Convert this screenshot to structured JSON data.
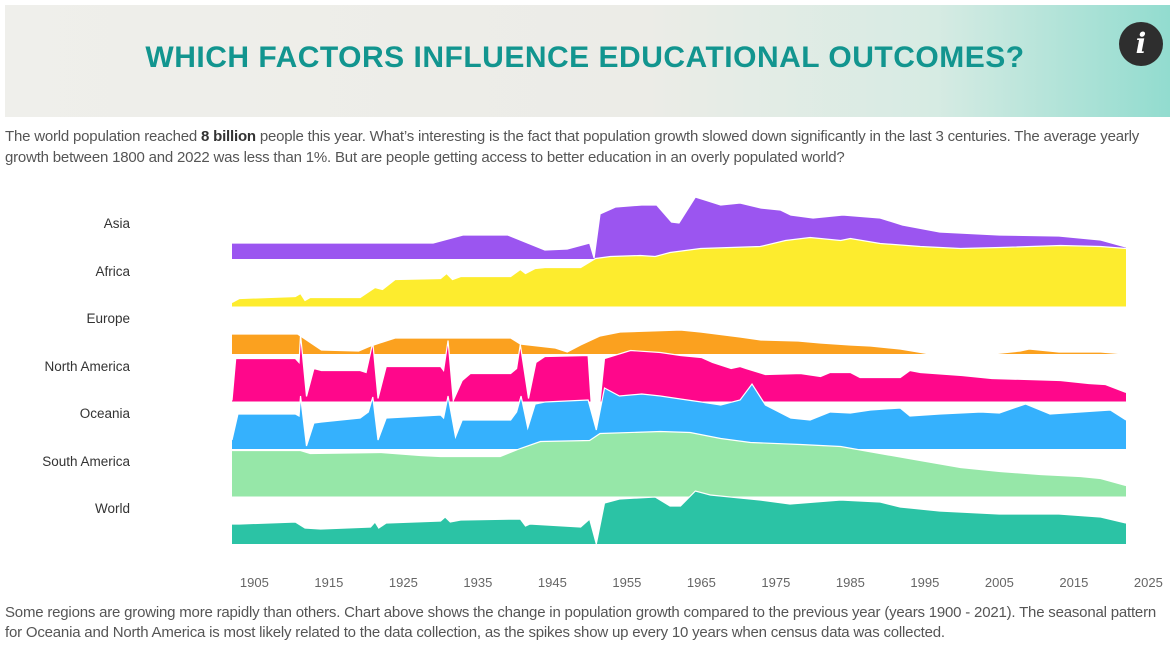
{
  "header": {
    "title": "WHICH FACTORS INFLUENCE EDUCATIONAL OUTCOMES?",
    "info_icon": "info-icon",
    "info_glyph": "i"
  },
  "intro": {
    "before": "The world population reached ",
    "bold": "8 billion",
    "after": " people this year. What’s interesting is the fact that population growth slowed down significantly in the last 3 centuries. The average yearly growth between 1800 and 2022 was less than 1%. But are people getting access to better education in an overly populated world?"
  },
  "outro": "Some regions are growing more rapidly than others. Chart above shows the change in population growth compared to the previous year (years 1900 - 2021). The seasonal pattern for Oceania and North America is most likely related to the data collection, as the spikes show up every 10 years when census data was collected.",
  "chart_data": {
    "type": "area",
    "subtype": "ridgeline",
    "title": "",
    "xlabel": "",
    "ylabel": "",
    "xlim": [
      1902,
      2022
    ],
    "x_ticks": [
      "1905",
      "1915",
      "1925",
      "1935",
      "1945",
      "1955",
      "1965",
      "1975",
      "1985",
      "1995",
      "2005",
      "2015",
      "2025"
    ],
    "value_note": "relative change in population growth (unitless index, estimated)",
    "series": [
      {
        "name": "Asia",
        "color": "#9b55f0",
        "points": [
          [
            1902,
            0.32
          ],
          [
            1929,
            0.32
          ],
          [
            1933,
            0.48
          ],
          [
            1939,
            0.48
          ],
          [
            1944,
            0.18
          ],
          [
            1947,
            0.2
          ],
          [
            1950,
            0.32
          ],
          [
            1950.6,
            0.02
          ],
          [
            1951.4,
            0.9
          ],
          [
            1953.5,
            1.04
          ],
          [
            1957,
            1.08
          ],
          [
            1959,
            1.08
          ],
          [
            1961,
            0.74
          ],
          [
            1962,
            0.72
          ],
          [
            1964.2,
            1.24
          ],
          [
            1965.5,
            1.18
          ],
          [
            1967.6,
            1.08
          ],
          [
            1970.2,
            1.12
          ],
          [
            1973,
            1.02
          ],
          [
            1975.6,
            0.98
          ],
          [
            1977,
            0.88
          ],
          [
            1980,
            0.82
          ],
          [
            1984,
            0.88
          ],
          [
            1989,
            0.82
          ],
          [
            1992,
            0.68
          ],
          [
            1997,
            0.54
          ],
          [
            2005,
            0.48
          ],
          [
            2013,
            0.46
          ],
          [
            2018.6,
            0.38
          ],
          [
            2022,
            0.24
          ]
        ]
      },
      {
        "name": "Africa",
        "color": "#fdec2e",
        "points": [
          [
            1902,
            0.08
          ],
          [
            1903,
            0.16
          ],
          [
            1910.5,
            0.2
          ],
          [
            1911.2,
            0.26
          ],
          [
            1911.8,
            0.12
          ],
          [
            1912.5,
            0.18
          ],
          [
            1919.2,
            0.18
          ],
          [
            1920.6,
            0.32
          ],
          [
            1921.2,
            0.38
          ],
          [
            1922.2,
            0.34
          ],
          [
            1923.9,
            0.54
          ],
          [
            1930,
            0.56
          ],
          [
            1930.8,
            0.66
          ],
          [
            1931.6,
            0.54
          ],
          [
            1932.7,
            0.6
          ],
          [
            1939.4,
            0.6
          ],
          [
            1940.7,
            0.74
          ],
          [
            1941.4,
            0.66
          ],
          [
            1942.7,
            0.76
          ],
          [
            1944,
            0.78
          ],
          [
            1948.8,
            0.78
          ],
          [
            1950.8,
            0.96
          ],
          [
            1952.8,
            1.0
          ],
          [
            1956.8,
            1.02
          ],
          [
            1958.8,
            1.0
          ],
          [
            1960.8,
            1.08
          ],
          [
            1964.9,
            1.16
          ],
          [
            1972.9,
            1.2
          ],
          [
            1976.3,
            1.32
          ],
          [
            1979.6,
            1.38
          ],
          [
            1983.7,
            1.32
          ],
          [
            1985,
            1.36
          ],
          [
            1989,
            1.26
          ],
          [
            1994.4,
            1.2
          ],
          [
            1999.8,
            1.16
          ],
          [
            2005.1,
            1.18
          ],
          [
            2013.2,
            1.22
          ],
          [
            2018.6,
            1.2
          ],
          [
            2022,
            1.16
          ]
        ]
      },
      {
        "name": "Europe",
        "color": "#fba11f",
        "points": [
          [
            1902,
            0.4
          ],
          [
            1910.8,
            0.4
          ],
          [
            1911.2,
            0.36
          ],
          [
            1914,
            0.08
          ],
          [
            1919,
            0.06
          ],
          [
            1920.6,
            0.16
          ],
          [
            1923.9,
            0.32
          ],
          [
            1939.4,
            0.32
          ],
          [
            1940.7,
            0.2
          ],
          [
            1945.4,
            0.12
          ],
          [
            1947,
            0.04
          ],
          [
            1948.8,
            0.18
          ],
          [
            1951.4,
            0.36
          ],
          [
            1954.1,
            0.44
          ],
          [
            1962.2,
            0.48
          ],
          [
            1964.9,
            0.44
          ],
          [
            1970.2,
            0.34
          ],
          [
            1973,
            0.28
          ],
          [
            1978,
            0.26
          ],
          [
            1981,
            0.22
          ],
          [
            1985,
            0.18
          ],
          [
            1987.7,
            0.16
          ],
          [
            1991.7,
            0.1
          ],
          [
            1995.7,
            0.0
          ],
          [
            2004,
            0.0
          ],
          [
            2007.8,
            0.06
          ],
          [
            2009,
            0.1
          ],
          [
            2013,
            0.04
          ],
          [
            2018.6,
            0.04
          ],
          [
            2022,
            0.0
          ]
        ]
      },
      {
        "name": "North America",
        "color": "#ff078b",
        "points": [
          [
            1902,
            0.02
          ],
          [
            1902.5,
            0.86
          ],
          [
            1910.5,
            0.86
          ],
          [
            1911,
            0.78
          ],
          [
            1911.2,
            1.34
          ],
          [
            1912,
            0.1
          ],
          [
            1913,
            0.66
          ],
          [
            1914,
            0.62
          ],
          [
            1919.2,
            0.62
          ],
          [
            1920,
            0.58
          ],
          [
            1920.9,
            1.18
          ],
          [
            1921.6,
            0.06
          ],
          [
            1922.7,
            0.7
          ],
          [
            1930,
            0.7
          ],
          [
            1930.4,
            0.62
          ],
          [
            1931,
            1.22
          ],
          [
            1931.7,
            0.02
          ],
          [
            1932.9,
            0.42
          ],
          [
            1934,
            0.56
          ],
          [
            1939.4,
            0.56
          ],
          [
            1940.2,
            0.66
          ],
          [
            1940.7,
            1.14
          ],
          [
            1941.8,
            0.06
          ],
          [
            1942.8,
            0.78
          ],
          [
            1944,
            0.9
          ],
          [
            1949.8,
            0.92
          ],
          [
            1950.2,
            0.0
          ],
          [
            1951.4,
            0.0
          ],
          [
            1952,
            0.86
          ],
          [
            1955.5,
            1.02
          ],
          [
            1959.5,
            0.98
          ],
          [
            1962.2,
            0.92
          ],
          [
            1965,
            0.88
          ],
          [
            1966.5,
            0.78
          ],
          [
            1969,
            0.66
          ],
          [
            1970.2,
            0.7
          ],
          [
            1971,
            0.66
          ],
          [
            1973.6,
            0.54
          ],
          [
            1978.3,
            0.56
          ],
          [
            1981,
            0.5
          ],
          [
            1982.3,
            0.58
          ],
          [
            1985,
            0.58
          ],
          [
            1986.3,
            0.48
          ],
          [
            1991.7,
            0.48
          ],
          [
            1993,
            0.62
          ],
          [
            1994.4,
            0.58
          ],
          [
            2000,
            0.52
          ],
          [
            2004,
            0.46
          ],
          [
            2013.2,
            0.42
          ],
          [
            2017,
            0.36
          ],
          [
            2019.2,
            0.34
          ],
          [
            2022,
            0.18
          ]
        ]
      },
      {
        "name": "Oceania",
        "color": "#35b1fd",
        "points": [
          [
            1902,
            0.18
          ],
          [
            1902.8,
            0.7
          ],
          [
            1910.5,
            0.7
          ],
          [
            1911,
            0.66
          ],
          [
            1911.2,
            1.06
          ],
          [
            1912,
            0.06
          ],
          [
            1913,
            0.52
          ],
          [
            1914,
            0.54
          ],
          [
            1919.2,
            0.62
          ],
          [
            1920.3,
            0.74
          ],
          [
            1920.9,
            1.04
          ],
          [
            1921.6,
            0.18
          ],
          [
            1922.7,
            0.62
          ],
          [
            1930,
            0.68
          ],
          [
            1930.4,
            0.62
          ],
          [
            1931,
            1.06
          ],
          [
            1932,
            0.24
          ],
          [
            1932.9,
            0.58
          ],
          [
            1939.4,
            0.58
          ],
          [
            1940.2,
            0.74
          ],
          [
            1940.8,
            1.06
          ],
          [
            1941.7,
            0.42
          ],
          [
            1942.7,
            0.9
          ],
          [
            1944,
            0.94
          ],
          [
            1949.8,
            0.98
          ],
          [
            1950.9,
            0.38
          ],
          [
            1952,
            1.22
          ],
          [
            1954,
            1.06
          ],
          [
            1957,
            1.1
          ],
          [
            1959.5,
            1.06
          ],
          [
            1962.2,
            1.0
          ],
          [
            1965,
            0.94
          ],
          [
            1967.6,
            0.88
          ],
          [
            1970.2,
            0.98
          ],
          [
            1971.8,
            1.3
          ],
          [
            1973.6,
            0.88
          ],
          [
            1977,
            0.62
          ],
          [
            1979.6,
            0.58
          ],
          [
            1982.3,
            0.74
          ],
          [
            1985,
            0.72
          ],
          [
            1987.7,
            0.78
          ],
          [
            1991.7,
            0.82
          ],
          [
            1993,
            0.66
          ],
          [
            1997,
            0.7
          ],
          [
            2002.5,
            0.74
          ],
          [
            2005,
            0.72
          ],
          [
            2008.5,
            0.9
          ],
          [
            2011.8,
            0.7
          ],
          [
            2019.9,
            0.78
          ],
          [
            2022,
            0.58
          ]
        ]
      },
      {
        "name": "South America",
        "color": "#96e7a8",
        "points": [
          [
            1902,
            0.92
          ],
          [
            1911.2,
            0.92
          ],
          [
            1912.5,
            0.86
          ],
          [
            1922,
            0.88
          ],
          [
            1927.3,
            0.82
          ],
          [
            1930,
            0.8
          ],
          [
            1938,
            0.8
          ],
          [
            1940.7,
            0.96
          ],
          [
            1943.4,
            1.1
          ],
          [
            1950,
            1.12
          ],
          [
            1951.4,
            1.26
          ],
          [
            1959.5,
            1.3
          ],
          [
            1963.5,
            1.28
          ],
          [
            1967.6,
            1.16
          ],
          [
            1971.6,
            1.08
          ],
          [
            1978.3,
            1.04
          ],
          [
            1983.7,
            1.0
          ],
          [
            1989,
            0.86
          ],
          [
            1994.4,
            0.72
          ],
          [
            1999.8,
            0.58
          ],
          [
            2005.1,
            0.5
          ],
          [
            2010.5,
            0.44
          ],
          [
            2015.9,
            0.4
          ],
          [
            2018.6,
            0.36
          ],
          [
            2022,
            0.22
          ]
        ]
      },
      {
        "name": "World",
        "color": "#2bc3a5",
        "points": [
          [
            1902,
            0.4
          ],
          [
            1903,
            0.4
          ],
          [
            1910.5,
            0.44
          ],
          [
            1911.8,
            0.32
          ],
          [
            1913.9,
            0.3
          ],
          [
            1920.6,
            0.34
          ],
          [
            1921.2,
            0.44
          ],
          [
            1921.7,
            0.32
          ],
          [
            1922.7,
            0.42
          ],
          [
            1930,
            0.46
          ],
          [
            1930.6,
            0.54
          ],
          [
            1931.3,
            0.44
          ],
          [
            1932.7,
            0.48
          ],
          [
            1940.7,
            0.5
          ],
          [
            1941.4,
            0.36
          ],
          [
            1942,
            0.4
          ],
          [
            1948.8,
            0.34
          ],
          [
            1950,
            0.5
          ],
          [
            1950.9,
            0.0
          ],
          [
            1952,
            0.82
          ],
          [
            1954,
            0.9
          ],
          [
            1958.8,
            0.94
          ],
          [
            1960.8,
            0.76
          ],
          [
            1962.2,
            0.76
          ],
          [
            1964.2,
            1.06
          ],
          [
            1966.2,
            0.98
          ],
          [
            1970.2,
            0.92
          ],
          [
            1972.9,
            0.88
          ],
          [
            1976.9,
            0.8
          ],
          [
            1983.7,
            0.88
          ],
          [
            1989,
            0.84
          ],
          [
            1991.7,
            0.74
          ],
          [
            1997,
            0.66
          ],
          [
            2005,
            0.6
          ],
          [
            2013,
            0.6
          ],
          [
            2018.6,
            0.54
          ],
          [
            2022,
            0.42
          ]
        ]
      }
    ]
  }
}
